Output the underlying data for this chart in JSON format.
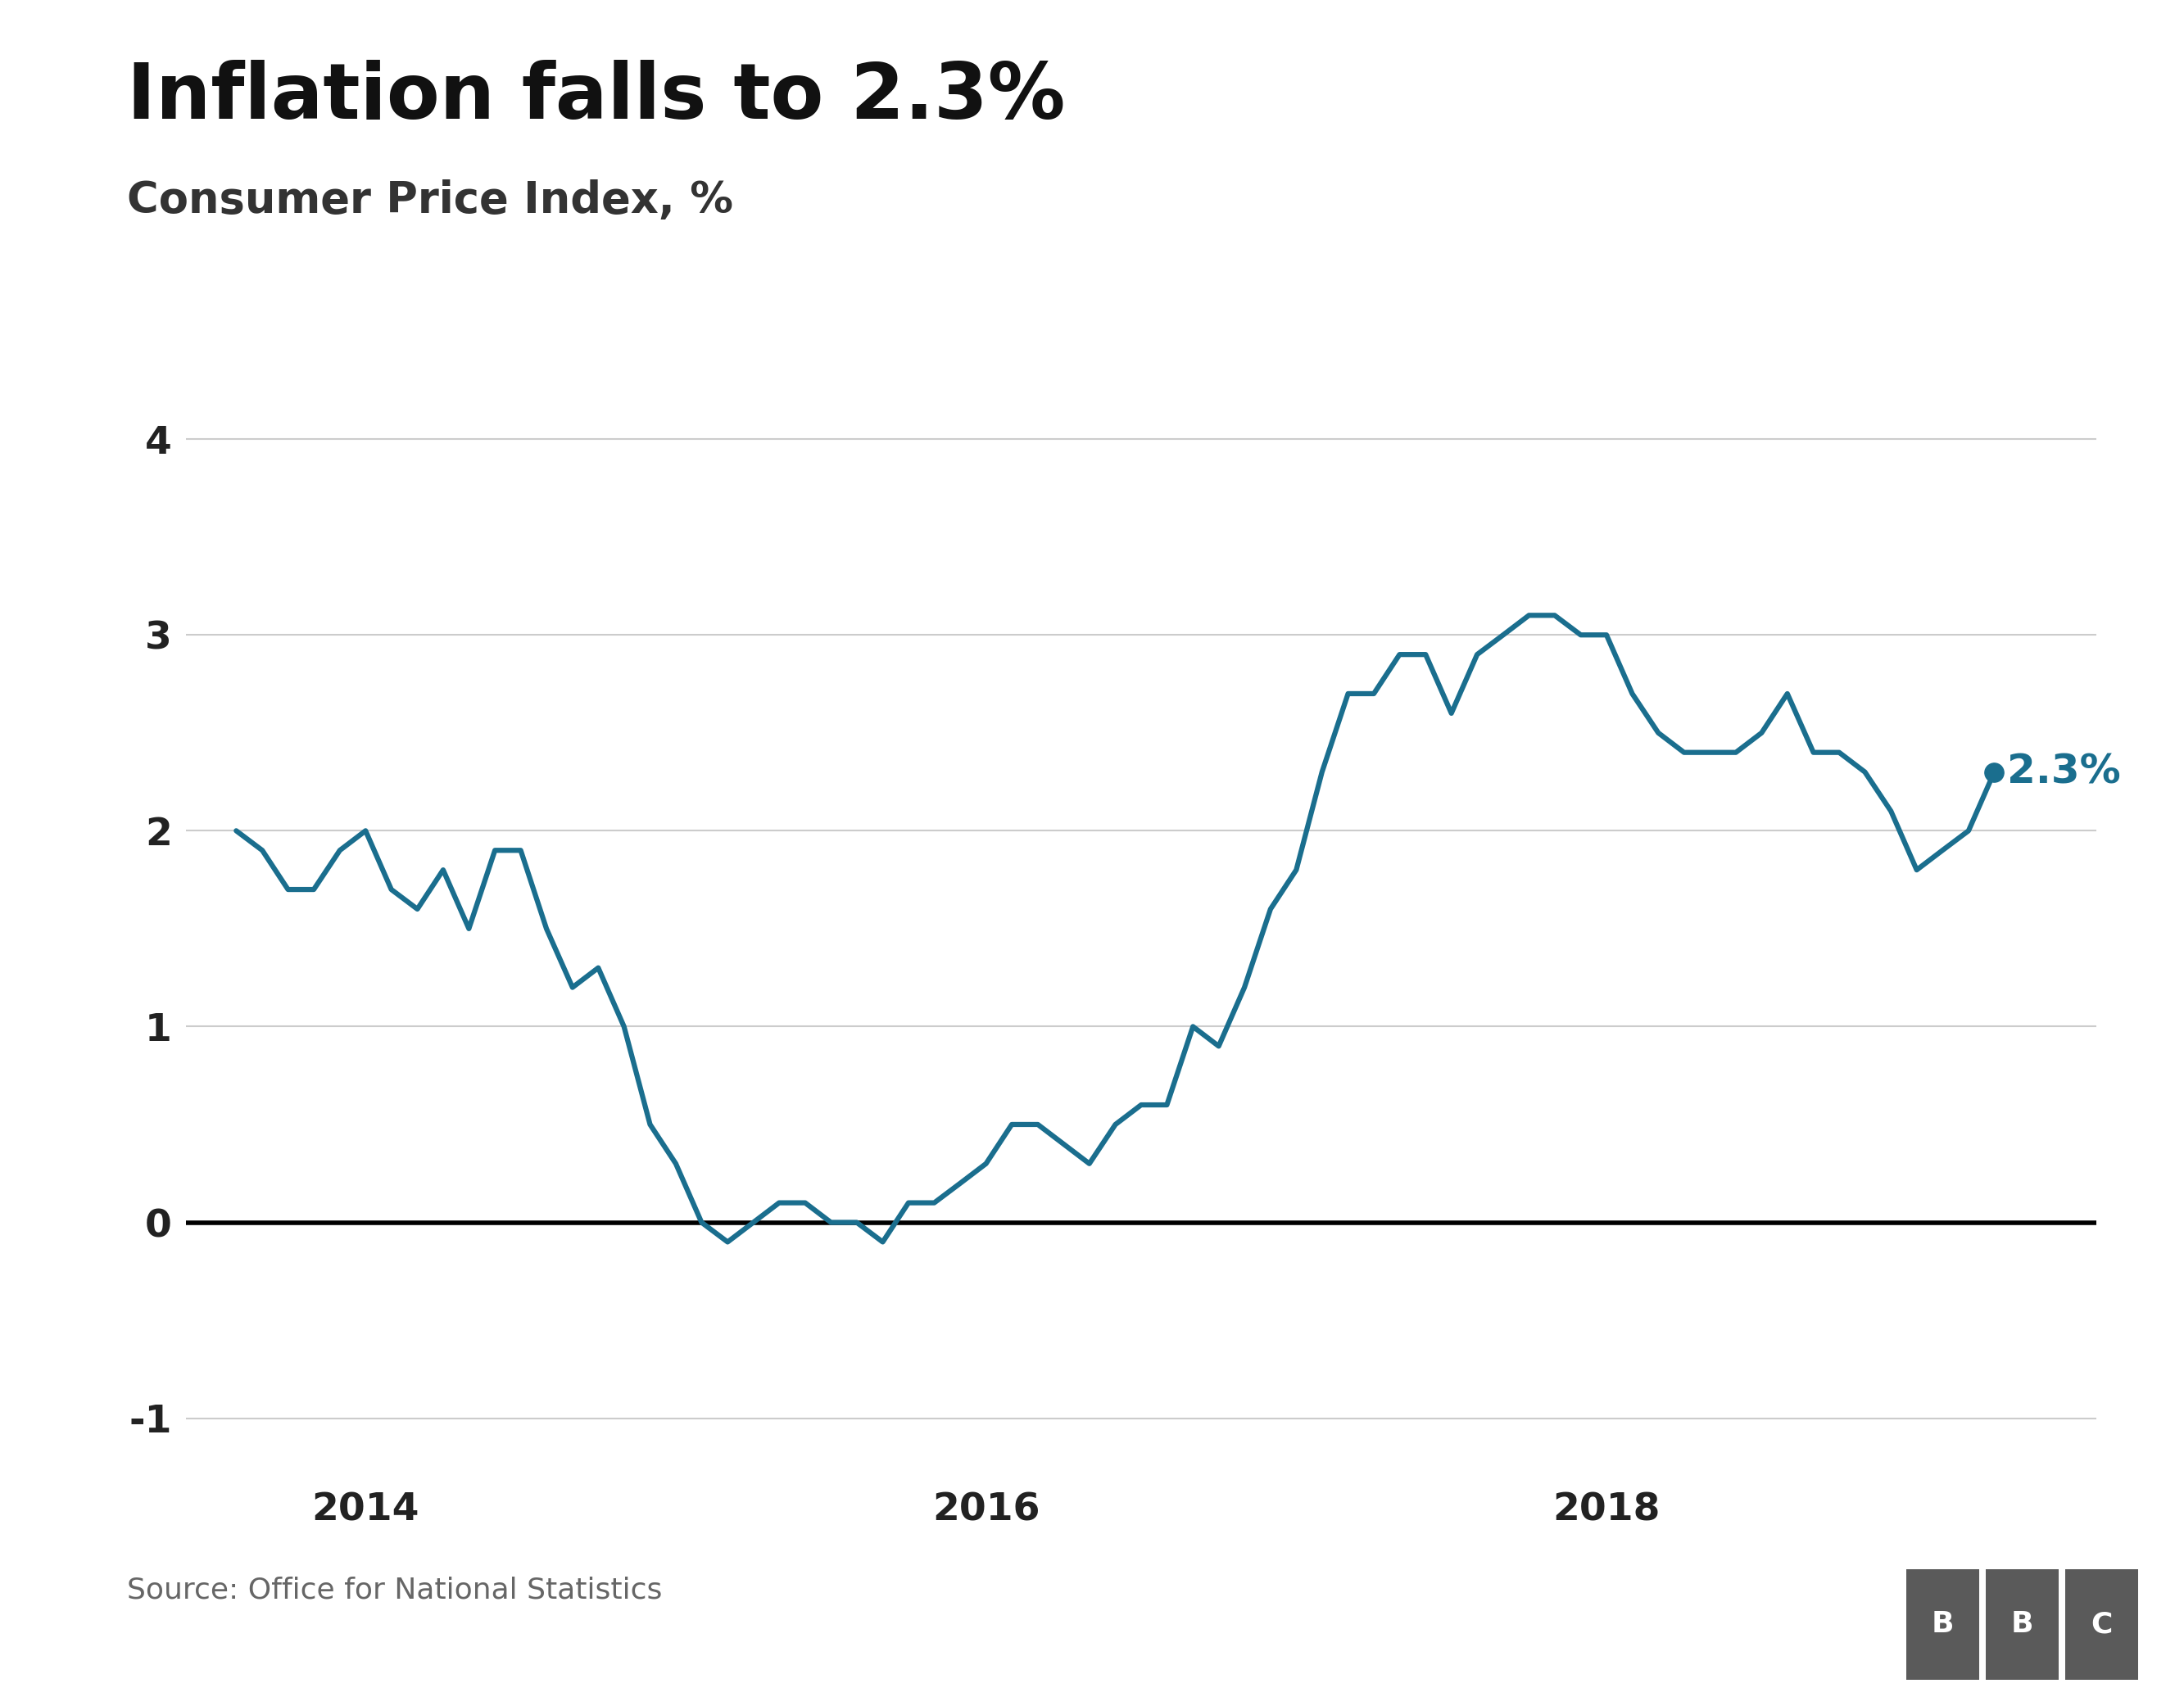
{
  "title": "Inflation falls to 2.3%",
  "subtitle": "Consumer Price Index, %",
  "source": "Source: Office for National Statistics",
  "line_color": "#1a6e8e",
  "background_color": "#ffffff",
  "grid_color": "#cccccc",
  "zero_line_color": "#000000",
  "annotation_label": "2.3%",
  "annotation_color": "#1a6e8e",
  "ylim": [
    -1.25,
    4.5
  ],
  "yticks": [
    -1,
    0,
    1,
    2,
    3,
    4
  ],
  "xtick_positions": [
    2014.0,
    2016.0,
    2018.0
  ],
  "xtick_labels": [
    "2014",
    "2016",
    "2018"
  ],
  "line_width": 4.5,
  "dot_size": 280,
  "x_values": [
    2013.583,
    2013.667,
    2013.75,
    2013.833,
    2013.917,
    2014.0,
    2014.083,
    2014.167,
    2014.25,
    2014.333,
    2014.417,
    2014.5,
    2014.583,
    2014.667,
    2014.75,
    2014.833,
    2014.917,
    2015.0,
    2015.083,
    2015.167,
    2015.25,
    2015.333,
    2015.417,
    2015.5,
    2015.583,
    2015.667,
    2015.75,
    2015.833,
    2015.917,
    2016.0,
    2016.083,
    2016.167,
    2016.25,
    2016.333,
    2016.417,
    2016.5,
    2016.583,
    2016.667,
    2016.75,
    2016.833,
    2016.917,
    2017.0,
    2017.083,
    2017.167,
    2017.25,
    2017.333,
    2017.417,
    2017.5,
    2017.583,
    2017.667,
    2017.75,
    2017.833,
    2017.917,
    2018.0,
    2018.083,
    2018.167,
    2018.25,
    2018.333,
    2018.417,
    2018.5,
    2018.583,
    2018.667,
    2018.75,
    2018.833,
    2018.917,
    2019.0,
    2019.083,
    2019.167,
    2019.25
  ],
  "y_values": [
    2.0,
    1.9,
    1.7,
    1.7,
    1.9,
    2.0,
    1.7,
    1.6,
    1.8,
    1.5,
    1.9,
    1.9,
    1.5,
    1.2,
    1.3,
    1.0,
    0.5,
    0.3,
    0.0,
    -0.1,
    0.0,
    0.1,
    0.1,
    0.0,
    0.0,
    -0.1,
    0.1,
    0.1,
    0.2,
    0.3,
    0.5,
    0.5,
    0.4,
    0.3,
    0.5,
    0.6,
    0.6,
    1.0,
    0.9,
    1.2,
    1.6,
    1.8,
    2.3,
    2.7,
    2.7,
    2.9,
    2.9,
    2.6,
    2.9,
    3.0,
    3.1,
    3.1,
    3.0,
    3.0,
    2.7,
    2.5,
    2.4,
    2.4,
    2.4,
    2.5,
    2.7,
    2.4,
    2.4,
    2.3,
    2.1,
    1.8,
    1.9,
    2.0,
    2.3
  ],
  "xlim_start": 2013.42,
  "xlim_end": 2019.58,
  "bbc_box_color": "#5a5a5a",
  "source_color": "#666666",
  "title_fontsize": 68,
  "subtitle_fontsize": 38,
  "tick_fontsize": 34,
  "annotation_fontsize": 36,
  "source_fontsize": 26
}
